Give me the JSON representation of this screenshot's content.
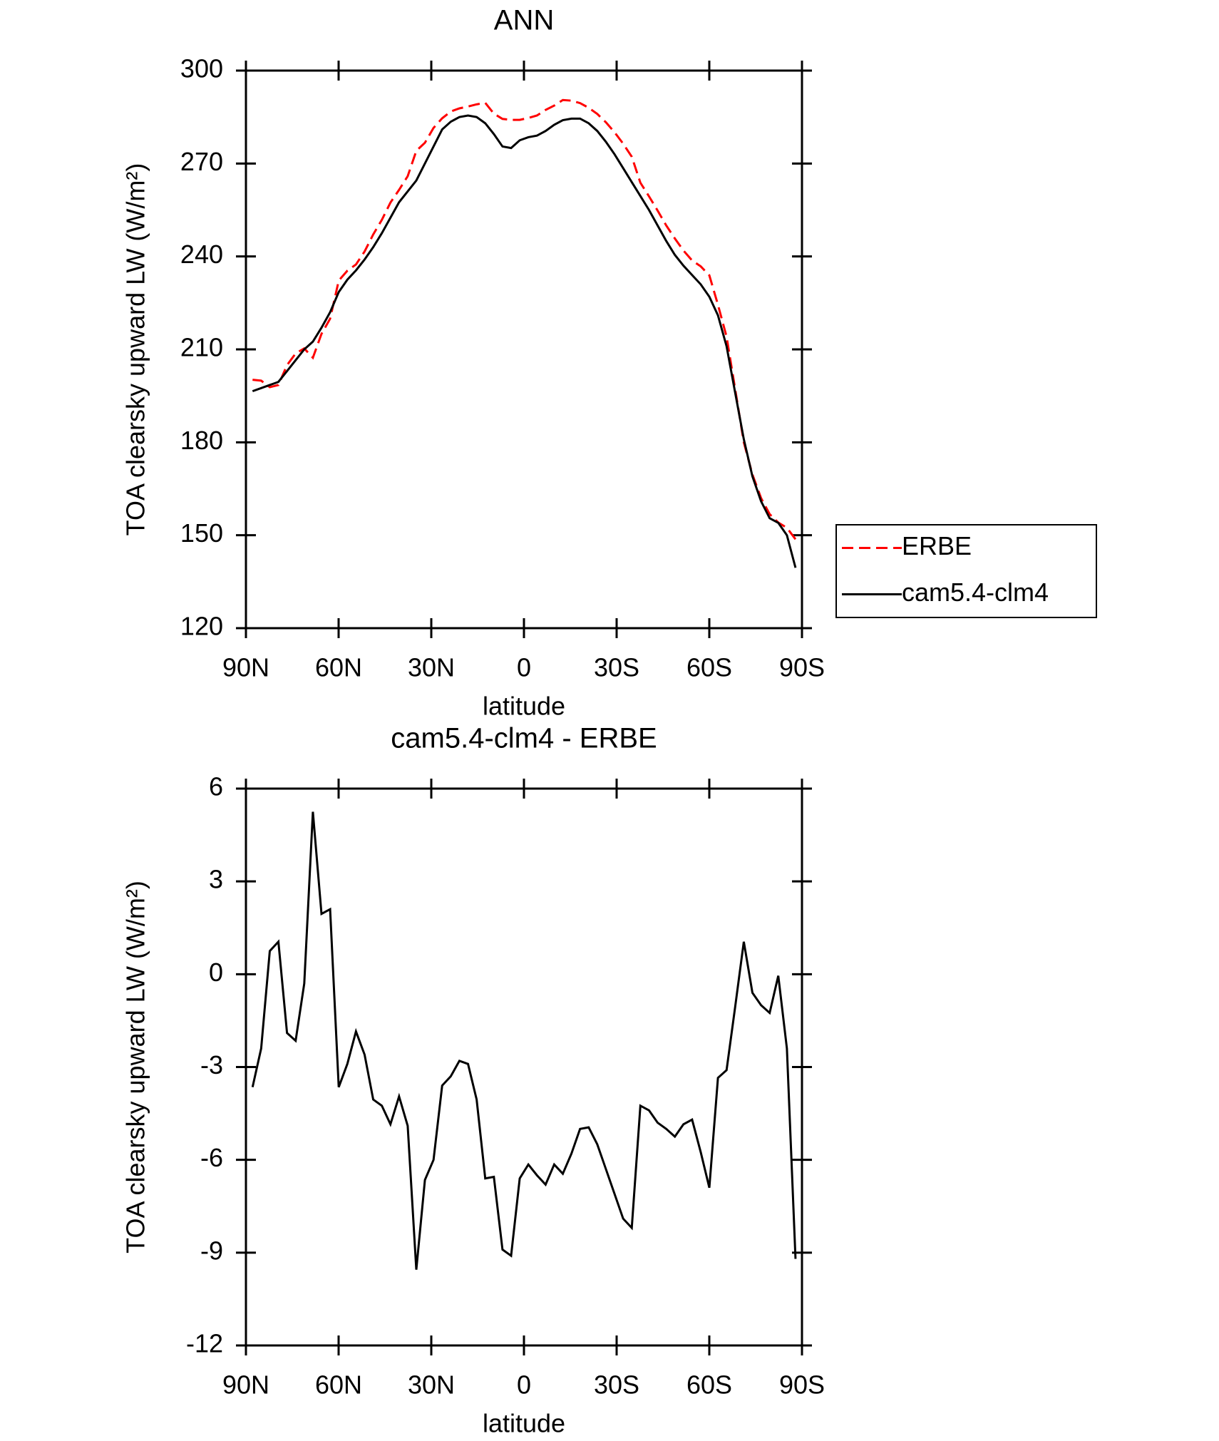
{
  "chart_data": [
    {
      "type": "line",
      "title": "ANN",
      "xlabel": "latitude",
      "ylabel": "TOA clearsky upward LW (W/m²)",
      "x": [
        87.86,
        85.07,
        82.28,
        79.49,
        76.7,
        73.91,
        71.12,
        68.33,
        65.54,
        62.75,
        59.96,
        57.17,
        54.38,
        51.59,
        48.8,
        46.01,
        43.22,
        40.43,
        37.64,
        34.85,
        32.06,
        29.27,
        26.48,
        23.69,
        20.9,
        18.11,
        15.32,
        12.53,
        9.74,
        6.95,
        4.16,
        1.37,
        -1.42,
        -4.21,
        -7,
        -9.79,
        -12.58,
        -15.37,
        -18.16,
        -20.95,
        -23.74,
        -26.53,
        -29.32,
        -32.11,
        -34.9,
        -37.69,
        -40.48,
        -43.27,
        -46.06,
        -48.85,
        -51.64,
        -54.43,
        -57.22,
        -60.01,
        -62.8,
        -65.59,
        -68.38,
        -71.17,
        -73.96,
        -76.75,
        -79.54,
        -82.33,
        -85.12,
        -87.91
      ],
      "series": [
        {
          "name": "ERBE",
          "color": "#ff0000",
          "dash": true,
          "values": [
            200.2,
            199.9,
            197.8,
            198.5,
            204.9,
            208.7,
            210.3,
            207.3,
            215,
            219.9,
            232.2,
            235.4,
            237.4,
            241.6,
            247.1,
            251.8,
            257.4,
            261.5,
            265.9,
            274.1,
            276.7,
            281.5,
            284.6,
            286.8,
            287.8,
            288.4,
            289.1,
            289.6,
            286.1,
            284.4,
            284.1,
            284.1,
            284.7,
            285.5,
            287.3,
            288.7,
            290.5,
            290.3,
            289.5,
            288,
            286,
            283.3,
            280.1,
            276.4,
            272.2,
            263.8,
            259.4,
            254.8,
            250,
            245.8,
            241.9,
            238.7,
            236.8,
            233.9,
            224.4,
            214.1,
            197.1,
            180,
            169.6,
            162,
            156.8,
            154.1,
            152.4,
            148.7
          ]
        },
        {
          "name": "cam5.4-clm4",
          "color": "#000000",
          "dash": false,
          "values": [
            196.5,
            197.5,
            198.5,
            199.5,
            203,
            206.5,
            210,
            212.5,
            217,
            222,
            228.5,
            232.5,
            235.5,
            239,
            243,
            247.5,
            252.5,
            257.5,
            261,
            264.5,
            270,
            275.5,
            281,
            283.5,
            285,
            285.5,
            285,
            283,
            279.5,
            275.5,
            275,
            277.5,
            278.5,
            279,
            280.5,
            282.5,
            284,
            284.5,
            284.5,
            283,
            280.5,
            277,
            273,
            268.5,
            264,
            259.5,
            255,
            250,
            245,
            240.5,
            237,
            234,
            231,
            227,
            221,
            211,
            196,
            181,
            169,
            161,
            155.5,
            154,
            150,
            139.5
          ]
        }
      ],
      "xlim": [
        90,
        -90
      ],
      "xticks": [
        {
          "value": 90,
          "label": "90N"
        },
        {
          "value": 60,
          "label": "60N"
        },
        {
          "value": 30,
          "label": "30N"
        },
        0,
        {
          "value": -30,
          "label": "30S"
        },
        {
          "value": -60,
          "label": "60S"
        },
        {
          "value": -90,
          "label": "90S"
        }
      ],
      "ylim": [
        120,
        300
      ],
      "yticks": [
        120,
        150,
        180,
        210,
        240,
        270,
        300
      ],
      "legend": "right"
    },
    {
      "type": "line",
      "title": "cam5.4-clm4 - ERBE",
      "xlabel": "latitude",
      "ylabel": "TOA clearsky upward LW (W/m²)",
      "x": [
        87.86,
        85.07,
        82.28,
        79.49,
        76.7,
        73.91,
        71.12,
        68.33,
        65.54,
        62.75,
        59.96,
        57.17,
        54.38,
        51.59,
        48.8,
        46.01,
        43.22,
        40.43,
        37.64,
        34.85,
        32.06,
        29.27,
        26.48,
        23.69,
        20.9,
        18.11,
        15.32,
        12.53,
        9.74,
        6.95,
        4.16,
        1.37,
        -1.42,
        -4.21,
        -7,
        -9.79,
        -12.58,
        -15.37,
        -18.16,
        -20.95,
        -23.74,
        -26.53,
        -29.32,
        -32.11,
        -34.9,
        -37.69,
        -40.48,
        -43.27,
        -46.06,
        -48.85,
        -51.64,
        -54.43,
        -57.22,
        -60.01,
        -62.8,
        -65.59,
        -68.38,
        -71.17,
        -73.96,
        -76.75,
        -79.54,
        -82.33,
        -85.12,
        -87.91
      ],
      "series": [
        {
          "color": "#000000",
          "dash": false,
          "values": [
            -3.65,
            -2.4,
            0.75,
            1.05,
            -1.9,
            -2.15,
            -0.3,
            5.25,
            1.95,
            2.1,
            -3.65,
            -2.9,
            -1.85,
            -2.6,
            -4.05,
            -4.25,
            -4.85,
            -3.95,
            -4.9,
            -9.55,
            -6.65,
            -6,
            -3.6,
            -3.3,
            -2.8,
            -2.9,
            -4.05,
            -6.6,
            -6.55,
            -8.9,
            -9.1,
            -6.6,
            -6.15,
            -6.5,
            -6.8,
            -6.15,
            -6.45,
            -5.8,
            -5,
            -4.95,
            -5.5,
            -6.3,
            -7.1,
            -7.9,
            -8.2,
            -4.25,
            -4.4,
            -4.8,
            -5,
            -5.25,
            -4.85,
            -4.7,
            -5.75,
            -6.9,
            -3.35,
            -3.1,
            -1.05,
            1.05,
            -0.6,
            -1,
            -1.25,
            -0.05,
            -2.4,
            -9.2
          ]
        }
      ],
      "xlim": [
        90,
        -90
      ],
      "xticks": [
        {
          "value": 90,
          "label": "90N"
        },
        {
          "value": 60,
          "label": "60N"
        },
        {
          "value": 30,
          "label": "30N"
        },
        0,
        {
          "value": -30,
          "label": "30S"
        },
        {
          "value": -60,
          "label": "60S"
        },
        {
          "value": -90,
          "label": "90S"
        }
      ],
      "ylim": [
        -12,
        6
      ],
      "yticks": [
        -12,
        -9,
        -6,
        -3,
        0,
        3,
        6
      ]
    }
  ]
}
